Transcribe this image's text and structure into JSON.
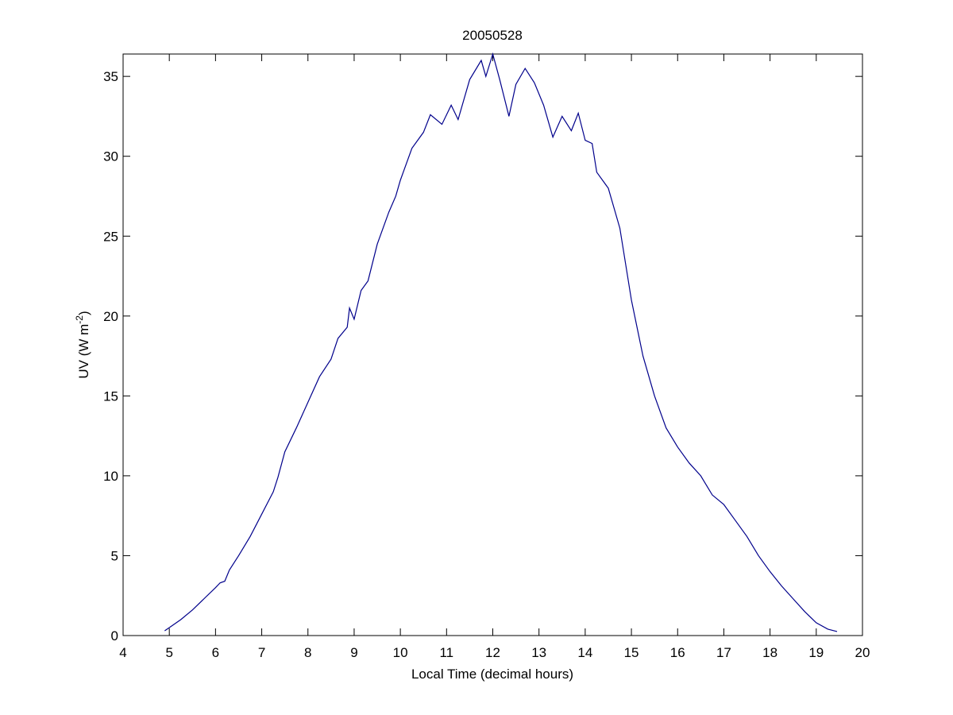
{
  "chart_data": {
    "type": "line",
    "title": "20050528",
    "xlabel": "Local Time (decimal hours)",
    "ylabel": [
      "UV (W m",
      "-2",
      ")"
    ],
    "xlim": [
      4,
      20
    ],
    "xticks": [
      4,
      5,
      6,
      7,
      8,
      9,
      10,
      11,
      12,
      13,
      14,
      15,
      16,
      17,
      18,
      19,
      20
    ],
    "ylim": [
      0,
      36.4
    ],
    "yticks": [
      0,
      5,
      10,
      15,
      20,
      25,
      30,
      35
    ],
    "grid": false,
    "series": [
      {
        "color": "#00008b",
        "x": [
          4.9,
          5.0,
          5.25,
          5.5,
          5.75,
          6.0,
          6.1,
          6.2,
          6.3,
          6.5,
          6.75,
          7.0,
          7.25,
          7.35,
          7.5,
          7.75,
          8.0,
          8.25,
          8.5,
          8.65,
          8.85,
          8.9,
          9.0,
          9.15,
          9.3,
          9.5,
          9.75,
          9.9,
          10.0,
          10.25,
          10.5,
          10.65,
          10.9,
          11.1,
          11.25,
          11.5,
          11.75,
          11.85,
          12.0,
          12.15,
          12.35,
          12.5,
          12.7,
          12.9,
          13.1,
          13.3,
          13.5,
          13.7,
          13.85,
          14.0,
          14.15,
          14.25,
          14.5,
          14.75,
          15.0,
          15.25,
          15.5,
          15.75,
          16.0,
          16.25,
          16.5,
          16.75,
          17.0,
          17.25,
          17.5,
          17.75,
          18.0,
          18.25,
          18.5,
          18.75,
          19.0,
          19.25,
          19.45
        ],
        "values": [
          0.3,
          0.5,
          1.0,
          1.6,
          2.3,
          3.0,
          3.3,
          3.4,
          4.1,
          5.0,
          6.2,
          7.6,
          9.0,
          9.9,
          11.5,
          13.0,
          14.6,
          16.2,
          17.3,
          18.6,
          19.3,
          20.5,
          19.8,
          21.6,
          22.2,
          24.5,
          26.5,
          27.5,
          28.5,
          30.5,
          31.5,
          32.6,
          32.0,
          33.2,
          32.3,
          34.8,
          36.0,
          35.0,
          36.4,
          34.8,
          32.5,
          34.5,
          35.5,
          34.6,
          33.2,
          31.2,
          32.5,
          31.6,
          32.7,
          31.0,
          30.8,
          29.0,
          28.0,
          25.5,
          21.0,
          17.5,
          15.0,
          13.0,
          11.8,
          10.8,
          10.0,
          8.8,
          8.2,
          7.2,
          6.2,
          5.0,
          4.0,
          3.1,
          2.3,
          1.5,
          0.8,
          0.4,
          0.25
        ]
      }
    ]
  }
}
